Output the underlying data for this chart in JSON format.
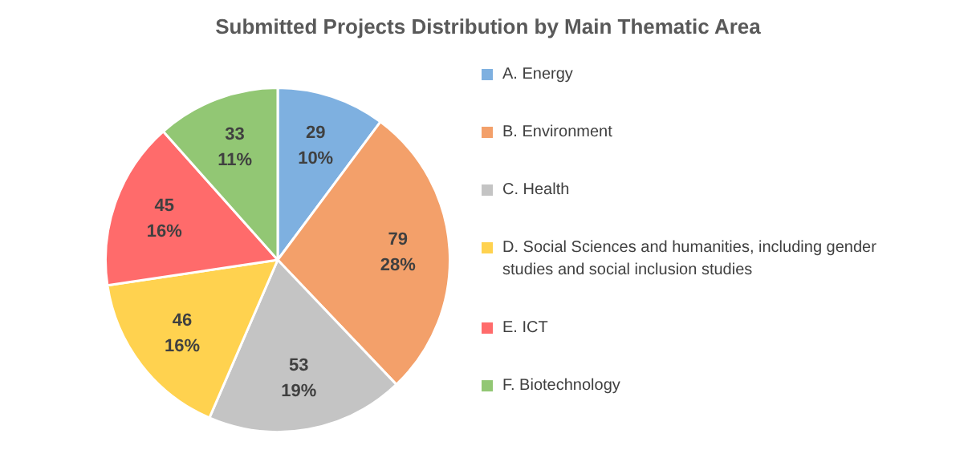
{
  "chart_data": {
    "type": "pie",
    "title": "Submitted Projects Distribution by Main Thematic Area",
    "categories": [
      "A. Energy",
      "B. Environment",
      "C. Health",
      "D. Social Sciences and humanities, including gender studies and social inclusion studies",
      "E. ICT",
      "F. Biotechnology"
    ],
    "values": [
      29,
      79,
      53,
      46,
      45,
      33
    ],
    "value_labels": [
      "29\n10%",
      "79\n28%",
      "53\n19%",
      "46\n16%",
      "45\n16%",
      "33\n11%"
    ],
    "colors": [
      "#7eb0e0",
      "#f3a06a",
      "#c4c4c4",
      "#ffd24f",
      "#ff6b6b",
      "#92c774"
    ],
    "legend": "right"
  }
}
